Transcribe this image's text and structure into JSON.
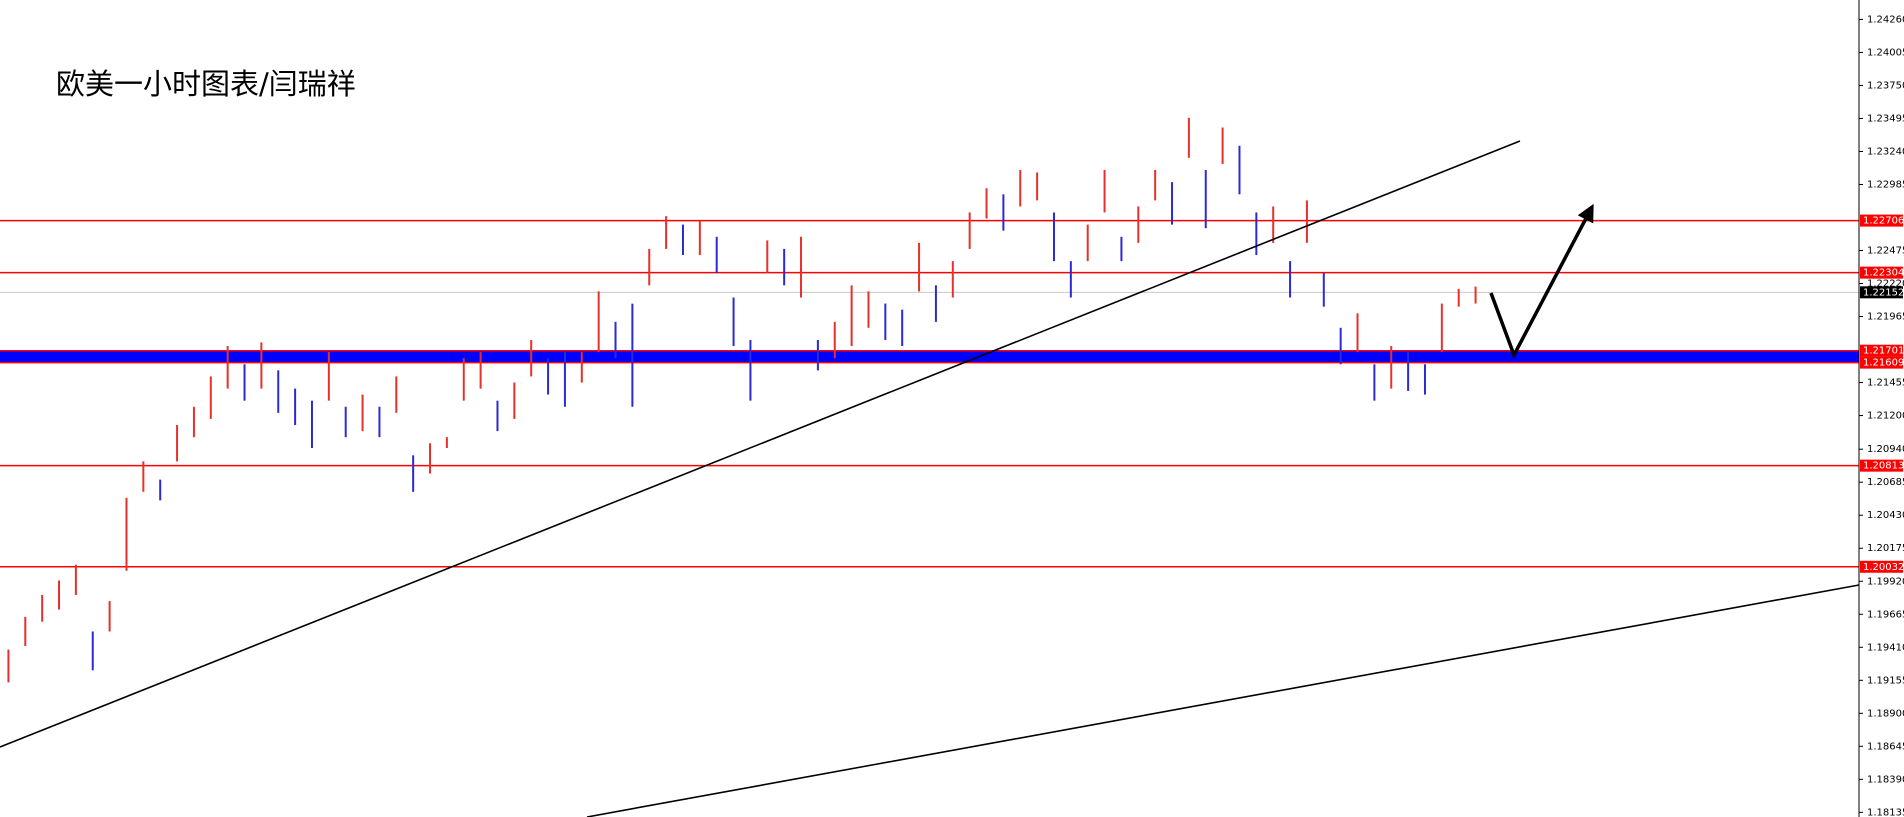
{
  "chart_data": {
    "type": "hilo",
    "title": "欧美一小时图表/闫瑞祥",
    "high": [
      1.19392,
      1.19645,
      1.19814,
      1.19926,
      1.20048,
      1.19532,
      1.19767,
      1.20564,
      1.20846,
      1.20705,
      1.21127,
      1.21268,
      1.21502,
      1.21737,
      1.21596,
      1.21765,
      1.21549,
      1.21408,
      1.21315,
      1.2169,
      1.21268,
      1.21362,
      1.21268,
      1.21502,
      1.20893,
      1.20986,
      1.21033,
      1.21643,
      1.2169,
      1.21315,
      1.21455,
      1.21784,
      1.21643,
      1.2169,
      1.2169,
      1.22159,
      1.21924,
      1.22065,
      1.22487,
      1.2274,
      1.22675,
      1.22703,
      1.22581,
      1.22112,
      1.21784,
      1.22553,
      1.22487,
      1.22581,
      1.21784,
      1.21924,
      1.22206,
      1.22159,
      1.22065,
      1.22018,
      1.22534,
      1.22206,
      1.22393,
      1.22769,
      1.22956,
      1.22909,
      1.23097,
      1.23078,
      1.22769,
      1.22393,
      1.22675,
      1.23097,
      1.22581,
      1.22815,
      1.23097,
      1.23003,
      1.235,
      1.23097,
      1.23425,
      1.23284,
      1.22769,
      1.22815,
      1.22393,
      1.22862,
      1.223,
      1.21878,
      1.2199,
      1.21596,
      1.21737,
      1.2169,
      1.21596,
      1.22065,
      1.22178,
      1.22196
    ],
    "low": [
      1.19139,
      1.1942,
      1.19608,
      1.19701,
      1.19814,
      1.19232,
      1.19532,
      1.20001,
      1.20611,
      1.20545,
      1.20846,
      1.21033,
      1.21174,
      1.21408,
      1.21315,
      1.21408,
      1.21221,
      1.21127,
      1.20949,
      1.21315,
      1.21033,
      1.2108,
      1.21033,
      1.21221,
      1.20611,
      1.20752,
      1.20949,
      1.21315,
      1.21408,
      1.2108,
      1.21174,
      1.21502,
      1.21362,
      1.21268,
      1.21455,
      1.2169,
      1.21643,
      1.21268,
      1.22206,
      1.22487,
      1.2244,
      1.2244,
      1.223,
      1.21737,
      1.21315,
      1.223,
      1.22206,
      1.22112,
      1.21549,
      1.21643,
      1.21737,
      1.21878,
      1.21784,
      1.21737,
      1.22159,
      1.21924,
      1.22112,
      1.22487,
      1.22722,
      1.22628,
      1.22815,
      1.22862,
      1.22393,
      1.22112,
      1.22393,
      1.22769,
      1.22393,
      1.22534,
      1.22862,
      1.22675,
      1.23191,
      1.22647,
      1.23144,
      1.22909,
      1.2244,
      1.22534,
      1.22112,
      1.22534,
      1.22041,
      1.21596,
      1.2169,
      1.21315,
      1.21408,
      1.2139,
      1.21362,
      1.2169,
      1.22041,
      1.22065
    ],
    "up_color": "#e8302a",
    "down_color": "#2b2bd6",
    "ylim": [
      1.18099,
      1.2441
    ],
    "yticks": [
      {
        "value": 1.2426,
        "label": "1.24260"
      },
      1.24005,
      {
        "value": 1.2375,
        "label": "1.23750"
      },
      1.23495,
      {
        "value": 1.2324,
        "label": "1.23240"
      },
      1.22985,
      1.22475,
      {
        "value": 1.2222,
        "label": "1.22220"
      },
      1.21965,
      1.21455,
      {
        "value": 1.212,
        "label": "1.21200"
      },
      {
        "value": 1.2094,
        "label": "1.20940"
      },
      1.20685,
      {
        "value": 1.2043,
        "label": "1.20430"
      },
      1.20175,
      {
        "value": 1.1992,
        "label": "1.19920"
      },
      1.19665,
      {
        "value": 1.1941,
        "label": "1.19410"
      },
      1.19155,
      {
        "value": 1.189,
        "label": "1.18900"
      },
      1.18645,
      {
        "value": 1.1839,
        "label": "1.18390"
      },
      1.18135
    ],
    "hlines": [
      1.22706,
      1.22304,
      1.20813,
      1.20032
    ],
    "hline_color": "#ff0000",
    "band": [
      1.21701,
      1.21609
    ],
    "band_color": "#0000ff",
    "current": 1.22152,
    "current_color": "#c8c8c8"
  }
}
